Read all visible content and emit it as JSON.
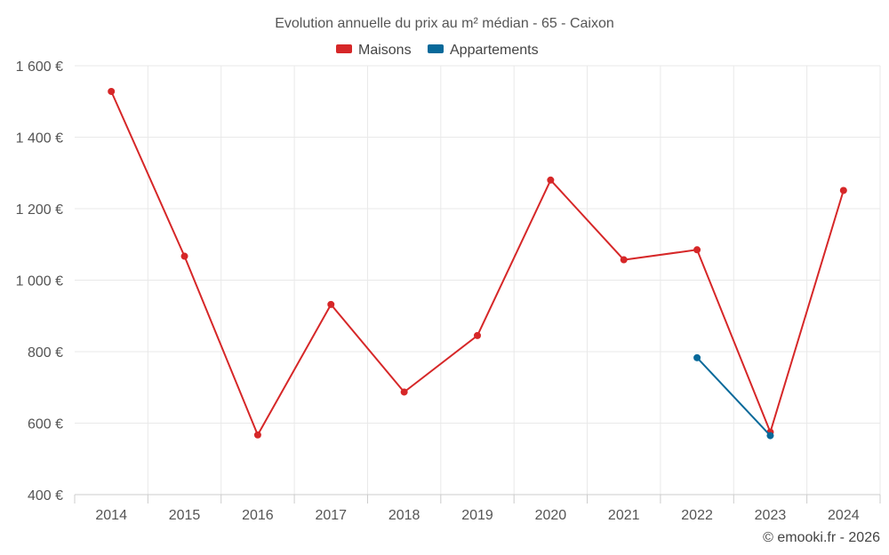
{
  "chart_data": {
    "type": "line",
    "title": "Evolution annuelle du prix au m² médian - 65 - Caixon",
    "categories": [
      "2014",
      "2015",
      "2016",
      "2017",
      "2018",
      "2019",
      "2020",
      "2021",
      "2022",
      "2023",
      "2024"
    ],
    "series": [
      {
        "name": "Maisons",
        "color": "#d62728",
        "values": [
          1528,
          1067,
          567,
          932,
          687,
          845,
          1280,
          1057,
          1085,
          575,
          1251
        ]
      },
      {
        "name": "Appartements",
        "color": "#07699a",
        "values": [
          null,
          null,
          null,
          null,
          null,
          null,
          null,
          null,
          783,
          565,
          null
        ]
      }
    ],
    "ylim": [
      400,
      1600
    ],
    "yticks": [
      400,
      600,
      800,
      1000,
      1200,
      1400,
      1600
    ],
    "y_tick_labels": [
      "400 €",
      "600 €",
      "800 €",
      "1 000 €",
      "1 200 €",
      "1 400 €",
      "1 600 €"
    ],
    "xlabel": "",
    "ylabel": "",
    "grid": true,
    "legend_position": "top-center"
  },
  "credit": "© emooki.fr - 2026"
}
